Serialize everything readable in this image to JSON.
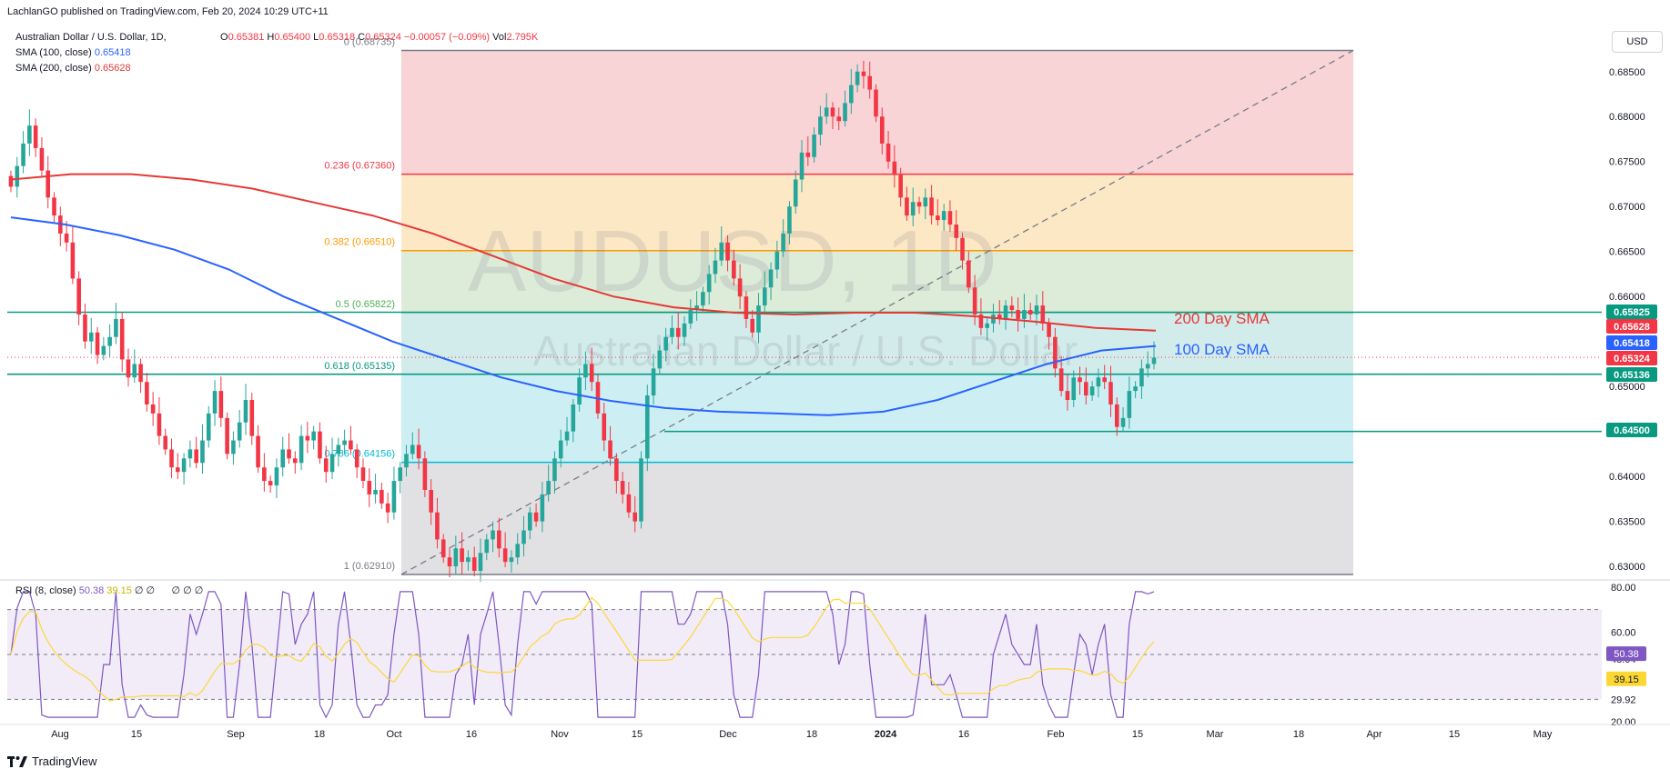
{
  "header": {
    "published": "LachlanGO published on TradingView.com, Feb 20, 2024 10:29 UTC+11",
    "symbol": "Australian Dollar / U.S. Dollar, 1D,",
    "ohlc": {
      "open_label": "O",
      "open": "0.65381",
      "high_label": "H",
      "high": "0.65400",
      "low_label": "L",
      "low": "0.65318",
      "close_label": "C",
      "close": "0.65324",
      "change": "−0.00057 (−0.09%)",
      "vol_label": "Vol",
      "vol": "2.795K"
    },
    "sma100_label": "SMA (100, close)",
    "sma100_value": "0.65418",
    "sma200_label": "SMA (200, close)",
    "sma200_value": "0.65628",
    "currency_button": "USD"
  },
  "watermark": {
    "symbol": "AUDUSD, 1D",
    "name": "Australian Dollar / U.S. Dollar"
  },
  "colors": {
    "up": "#26a69a",
    "down": "#f23645",
    "sma100": "#2962ff",
    "sma200": "#e53935",
    "rsi": "#7e57c2",
    "rsi_ma": "#fdd835",
    "support": "#089981"
  },
  "chart_data": {
    "type": "candlestick",
    "y_axis": {
      "range": [
        0.6291,
        0.6874
      ],
      "ticks": [
        "0.68500",
        "0.68000",
        "0.67500",
        "0.67000",
        "0.66500",
        "0.66000",
        "0.65500",
        "0.65000",
        "0.64500",
        "0.64000",
        "0.63500",
        "0.63000"
      ]
    },
    "x_axis": {
      "labels": [
        "Aug",
        "15",
        "Sep",
        "18",
        "Oct",
        "16",
        "Nov",
        "15",
        "Dec",
        "18",
        "2024",
        "16",
        "Feb",
        "15",
        "Mar",
        "18",
        "Apr",
        "15",
        "May"
      ]
    },
    "fibonacci": {
      "levels": [
        {
          "label": "0 (0.68735)",
          "value": 0.68735,
          "color": "#787b86"
        },
        {
          "label": "0.236 (0.67360)",
          "value": 0.6736,
          "color": "#f23645"
        },
        {
          "label": "0.382 (0.66510)",
          "value": 0.6651,
          "color": "#ff9800"
        },
        {
          "label": "0.5 (0.65822)",
          "value": 0.65822,
          "color": "#4caf50"
        },
        {
          "label": "0.618 (0.65135)",
          "value": 0.65135,
          "color": "#089981"
        },
        {
          "label": "0.786 (0.64156)",
          "value": 0.64156,
          "color": "#00bcd4"
        },
        {
          "label": "1 (0.62910)",
          "value": 0.6291,
          "color": "#787b86"
        }
      ]
    },
    "horizontal_lines": [
      {
        "label": "0.65825",
        "value": 0.65825
      },
      {
        "label": "0.65136",
        "value": 0.65136
      },
      {
        "label": "0.64500",
        "value": 0.645
      }
    ],
    "annotations": [
      {
        "text": "200 Day SMA",
        "color": "#e53935"
      },
      {
        "text": "100 Day SMA",
        "color": "#2962ff"
      }
    ],
    "price_tags": [
      {
        "text": "0.65825",
        "value": 0.65825,
        "color": "#089981"
      },
      {
        "text": "0.65628",
        "value": 0.65628,
        "color": "#f23645"
      },
      {
        "text": "0.65418",
        "value": 0.65418,
        "color": "#2962ff"
      },
      {
        "text": "0.65324",
        "value": 0.65324,
        "color": "#f23645"
      },
      {
        "text": "0.65136",
        "value": 0.65136,
        "color": "#089981"
      },
      {
        "text": "0.64500",
        "value": 0.645,
        "color": "#089981"
      }
    ],
    "candles_close": [
      0.6722,
      0.6745,
      0.677,
      0.679,
      0.6765,
      0.674,
      0.671,
      0.669,
      0.667,
      0.666,
      0.662,
      0.658,
      0.655,
      0.656,
      0.6535,
      0.6545,
      0.6555,
      0.6575,
      0.653,
      0.651,
      0.6525,
      0.6505,
      0.648,
      0.647,
      0.6445,
      0.643,
      0.641,
      0.6405,
      0.642,
      0.643,
      0.6415,
      0.644,
      0.647,
      0.6495,
      0.6465,
      0.6425,
      0.644,
      0.646,
      0.6485,
      0.6445,
      0.641,
      0.6395,
      0.639,
      0.641,
      0.643,
      0.642,
      0.6415,
      0.6445,
      0.644,
      0.645,
      0.642,
      0.6405,
      0.6425,
      0.6435,
      0.644,
      0.643,
      0.641,
      0.6395,
      0.638,
      0.6385,
      0.637,
      0.636,
      0.6395,
      0.641,
      0.6425,
      0.6435,
      0.642,
      0.6385,
      0.636,
      0.633,
      0.631,
      0.63,
      0.632,
      0.6305,
      0.631,
      0.6295,
      0.6315,
      0.633,
      0.634,
      0.632,
      0.6305,
      0.631,
      0.6325,
      0.634,
      0.636,
      0.635,
      0.638,
      0.6395,
      0.642,
      0.644,
      0.645,
      0.648,
      0.651,
      0.6525,
      0.6505,
      0.647,
      0.644,
      0.642,
      0.6395,
      0.638,
      0.636,
      0.635,
      0.642,
      0.649,
      0.652,
      0.654,
      0.6555,
      0.6565,
      0.6555,
      0.657,
      0.6585,
      0.659,
      0.6605,
      0.6625,
      0.664,
      0.666,
      0.664,
      0.662,
      0.66,
      0.6575,
      0.656,
      0.659,
      0.661,
      0.663,
      0.665,
      0.667,
      0.67,
      0.673,
      0.676,
      0.6755,
      0.678,
      0.68,
      0.681,
      0.68,
      0.6795,
      0.6815,
      0.6835,
      0.685,
      0.6845,
      0.683,
      0.68,
      0.677,
      0.675,
      0.6735,
      0.671,
      0.669,
      0.6705,
      0.67,
      0.671,
      0.669,
      0.6685,
      0.6695,
      0.668,
      0.6665,
      0.664,
      0.661,
      0.658,
      0.6565,
      0.657,
      0.658,
      0.6575,
      0.659,
      0.6585,
      0.6575,
      0.6585,
      0.658,
      0.659,
      0.657,
      0.6555,
      0.652,
      0.6495,
      0.6485,
      0.651,
      0.6505,
      0.649,
      0.65,
      0.651,
      0.6505,
      0.648,
      0.6455,
      0.6465,
      0.6495,
      0.65,
      0.652,
      0.6525,
      0.6532
    ],
    "sma100_series": [
      0.6688,
      0.668,
      0.6668,
      0.6652,
      0.663,
      0.66,
      0.6575,
      0.655,
      0.653,
      0.651,
      0.6495,
      0.6484,
      0.6476,
      0.6472,
      0.647,
      0.6468,
      0.6472,
      0.6485,
      0.6505,
      0.6525,
      0.654,
      0.6545
    ],
    "sma200_series": [
      0.673,
      0.6736,
      0.6736,
      0.673,
      0.672,
      0.6705,
      0.669,
      0.667,
      0.6645,
      0.662,
      0.66,
      0.6588,
      0.6582,
      0.658,
      0.6582,
      0.6582,
      0.6578,
      0.6572,
      0.6565,
      0.6562
    ],
    "rsi": {
      "label": "RSI (8, close)",
      "value": "50.38",
      "ma_value": "39.15",
      "extra": [
        "∅",
        "∅",
        "∅",
        "∅",
        "∅"
      ],
      "y_axis": {
        "range": [
          20,
          80
        ],
        "ticks": [
          "80.00",
          "60.00",
          "48.04",
          "29.92",
          "20.00"
        ]
      },
      "tags": [
        {
          "text": "50.38",
          "color": "#7e57c2"
        },
        {
          "text": "39.15",
          "color": "#fdd835"
        }
      ]
    }
  },
  "footer": {
    "brand": "TradingView"
  }
}
